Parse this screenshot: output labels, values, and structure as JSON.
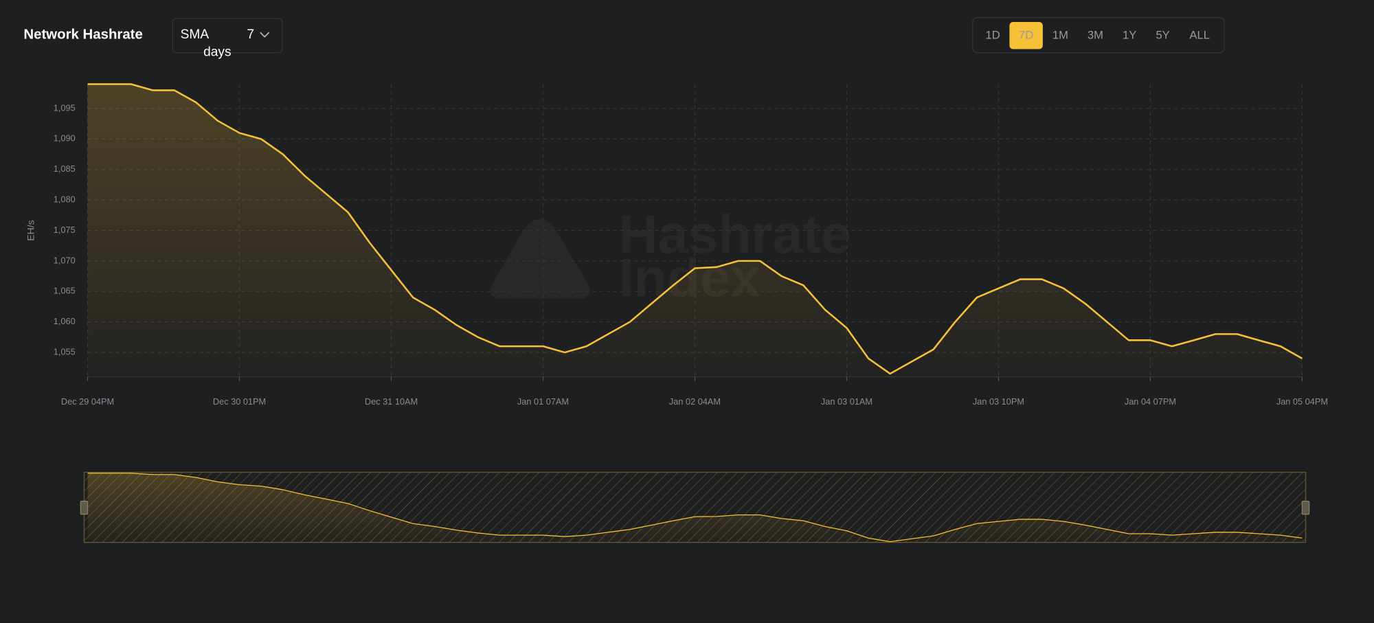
{
  "header": {
    "title": "Network Hashrate",
    "dropdown": "SMA 7 days",
    "ranges": [
      "1D",
      "7D",
      "1M",
      "3M",
      "1Y",
      "5Y",
      "ALL"
    ],
    "active_range": "7D"
  },
  "watermark": [
    "Hashrate",
    "Index"
  ],
  "chart_data": {
    "type": "line",
    "y_label": "EH/s",
    "color": "#f7c137",
    "grid": true,
    "x": [
      "Dec 29 04PM",
      "Dec 29 07PM",
      "Dec 29 10PM",
      "Dec 30 01AM",
      "Dec 30 04AM",
      "Dec 30 07AM",
      "Dec 30 10AM",
      "Dec 30 01PM",
      "Dec 30 04PM",
      "Dec 30 07PM",
      "Dec 30 10PM",
      "Dec 31 01AM",
      "Dec 31 04AM",
      "Dec 31 07AM",
      "Dec 31 10AM",
      "Dec 31 01PM",
      "Dec 31 04PM",
      "Dec 31 07PM",
      "Dec 31 10PM",
      "Jan 01 01AM",
      "Jan 01 04AM",
      "Jan 01 07AM",
      "Jan 01 10AM",
      "Jan 01 01PM",
      "Jan 01 04PM",
      "Jan 01 07PM",
      "Jan 01 10PM",
      "Jan 02 01AM",
      "Jan 02 04AM",
      "Jan 02 07AM",
      "Jan 02 10AM",
      "Jan 02 01PM",
      "Jan 02 04PM",
      "Jan 02 07PM",
      "Jan 02 10PM",
      "Jan 03 01AM",
      "Jan 03 04AM",
      "Jan 03 07AM",
      "Jan 03 10AM",
      "Jan 03 01PM",
      "Jan 03 04PM",
      "Jan 03 07PM",
      "Jan 03 10PM",
      "Jan 04 01AM",
      "Jan 04 04AM",
      "Jan 04 07AM",
      "Jan 04 10AM",
      "Jan 04 01PM",
      "Jan 04 04PM",
      "Jan 04 07PM",
      "Jan 04 10PM",
      "Jan 05 01AM",
      "Jan 05 04AM",
      "Jan 05 07AM",
      "Jan 05 10AM",
      "Jan 05 01PM",
      "Jan 05 04PM"
    ],
    "series": [
      {
        "name": "Network Hashrate",
        "color": "#f7c137",
        "values": [
          1099,
          1099,
          1099,
          1098,
          1098,
          1096,
          1093,
          1091,
          1090,
          1087.5,
          1084,
          1081,
          1078,
          1073,
          1068.5,
          1064,
          1062,
          1059.5,
          1057.5,
          1056,
          1056,
          1056,
          1055,
          1056,
          1058,
          1060,
          1063,
          1066,
          1068.8,
          1069,
          1070,
          1070,
          1067.5,
          1066,
          1062,
          1059,
          1054,
          1051.5,
          1053.5,
          1055.5,
          1060,
          1064,
          1065.5,
          1067,
          1067,
          1065.5,
          1063,
          1060,
          1057,
          1057,
          1056,
          1057,
          1058,
          1058,
          1057,
          1056,
          1054
        ]
      }
    ],
    "xticks": [
      "Dec 29 04PM",
      "Dec 30 01PM",
      "Dec 31 10AM",
      "Jan 01 07AM",
      "Jan 02 04AM",
      "Jan 03 01AM",
      "Jan 03 10PM",
      "Jan 04 07PM",
      "Jan 05 04PM"
    ],
    "ylim": [
      1051,
      1099
    ],
    "yticks": [
      {
        "value": 1055,
        "label": "1,055"
      },
      {
        "value": 1060,
        "label": "1,060"
      },
      {
        "value": 1065,
        "label": "1,065"
      },
      {
        "value": 1070,
        "label": "1,070"
      },
      {
        "value": 1075,
        "label": "1,075"
      },
      {
        "value": 1080,
        "label": "1,080"
      },
      {
        "value": 1085,
        "label": "1,085"
      },
      {
        "value": 1090,
        "label": "1,090"
      },
      {
        "value": 1095,
        "label": "1,095"
      }
    ]
  }
}
